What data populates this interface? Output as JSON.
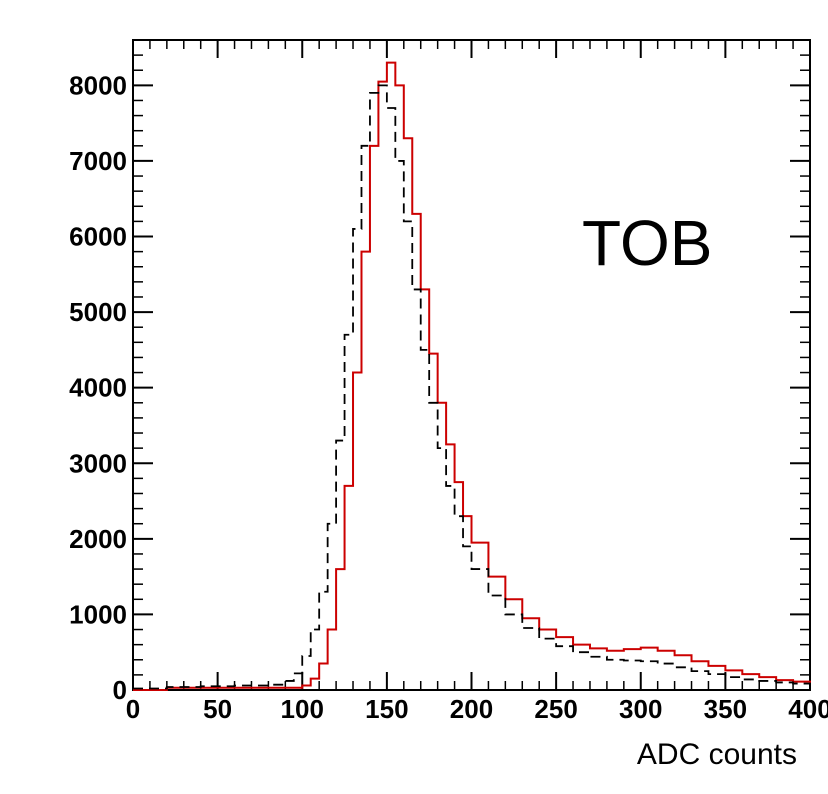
{
  "chart_data": {
    "type": "line",
    "title": "",
    "annotation": "TOB",
    "xlabel": "ADC counts",
    "ylabel": "",
    "xlim": [
      0,
      400
    ],
    "ylim": [
      0,
      8600
    ],
    "x_ticks": [
      0,
      50,
      100,
      150,
      200,
      250,
      300,
      350,
      400
    ],
    "y_ticks": [
      0,
      1000,
      2000,
      3000,
      4000,
      5000,
      6000,
      7000,
      8000
    ],
    "x_tick_labels": [
      "0",
      "50",
      "100",
      "150",
      "200",
      "250",
      "300",
      "350",
      "400"
    ],
    "y_tick_labels": [
      "0",
      "1000",
      "2000",
      "3000",
      "4000",
      "5000",
      "6000",
      "7000",
      "8000"
    ],
    "grid": false,
    "series": [
      {
        "color": "#cc0000",
        "style": "solid-step",
        "x": [
          0,
          20,
          40,
          60,
          80,
          95,
          100,
          105,
          110,
          115,
          120,
          125,
          130,
          135,
          140,
          145,
          150,
          155,
          160,
          165,
          170,
          175,
          180,
          185,
          190,
          195,
          200,
          210,
          220,
          230,
          240,
          250,
          260,
          270,
          280,
          290,
          300,
          310,
          320,
          330,
          340,
          350,
          360,
          370,
          380,
          390,
          400
        ],
        "y": [
          0,
          30,
          30,
          30,
          30,
          30,
          60,
          150,
          350,
          800,
          1600,
          2700,
          4200,
          5800,
          7200,
          8050,
          8300,
          8000,
          7300,
          6300,
          5300,
          4450,
          3800,
          3250,
          2750,
          2300,
          1950,
          1500,
          1200,
          950,
          800,
          700,
          600,
          550,
          520,
          540,
          560,
          520,
          460,
          380,
          320,
          260,
          210,
          170,
          130,
          110,
          90
        ]
      },
      {
        "color": "#000000",
        "style": "dashed-step",
        "x": [
          0,
          20,
          40,
          60,
          80,
          90,
          95,
          100,
          105,
          110,
          115,
          120,
          125,
          130,
          135,
          140,
          145,
          150,
          155,
          160,
          165,
          170,
          175,
          180,
          185,
          190,
          195,
          200,
          210,
          220,
          230,
          240,
          250,
          260,
          270,
          280,
          290,
          300,
          310,
          320,
          330,
          340,
          350,
          360,
          370,
          380,
          390,
          400
        ],
        "y": [
          20,
          40,
          50,
          60,
          70,
          120,
          220,
          450,
          800,
          1300,
          2200,
          3300,
          4700,
          6100,
          7200,
          7900,
          8000,
          7700,
          7000,
          6200,
          5300,
          4500,
          3800,
          3200,
          2700,
          2300,
          1900,
          1600,
          1250,
          1000,
          820,
          680,
          580,
          500,
          440,
          400,
          390,
          380,
          350,
          300,
          250,
          210,
          170,
          140,
          120,
          100,
          85,
          70
        ]
      }
    ]
  }
}
